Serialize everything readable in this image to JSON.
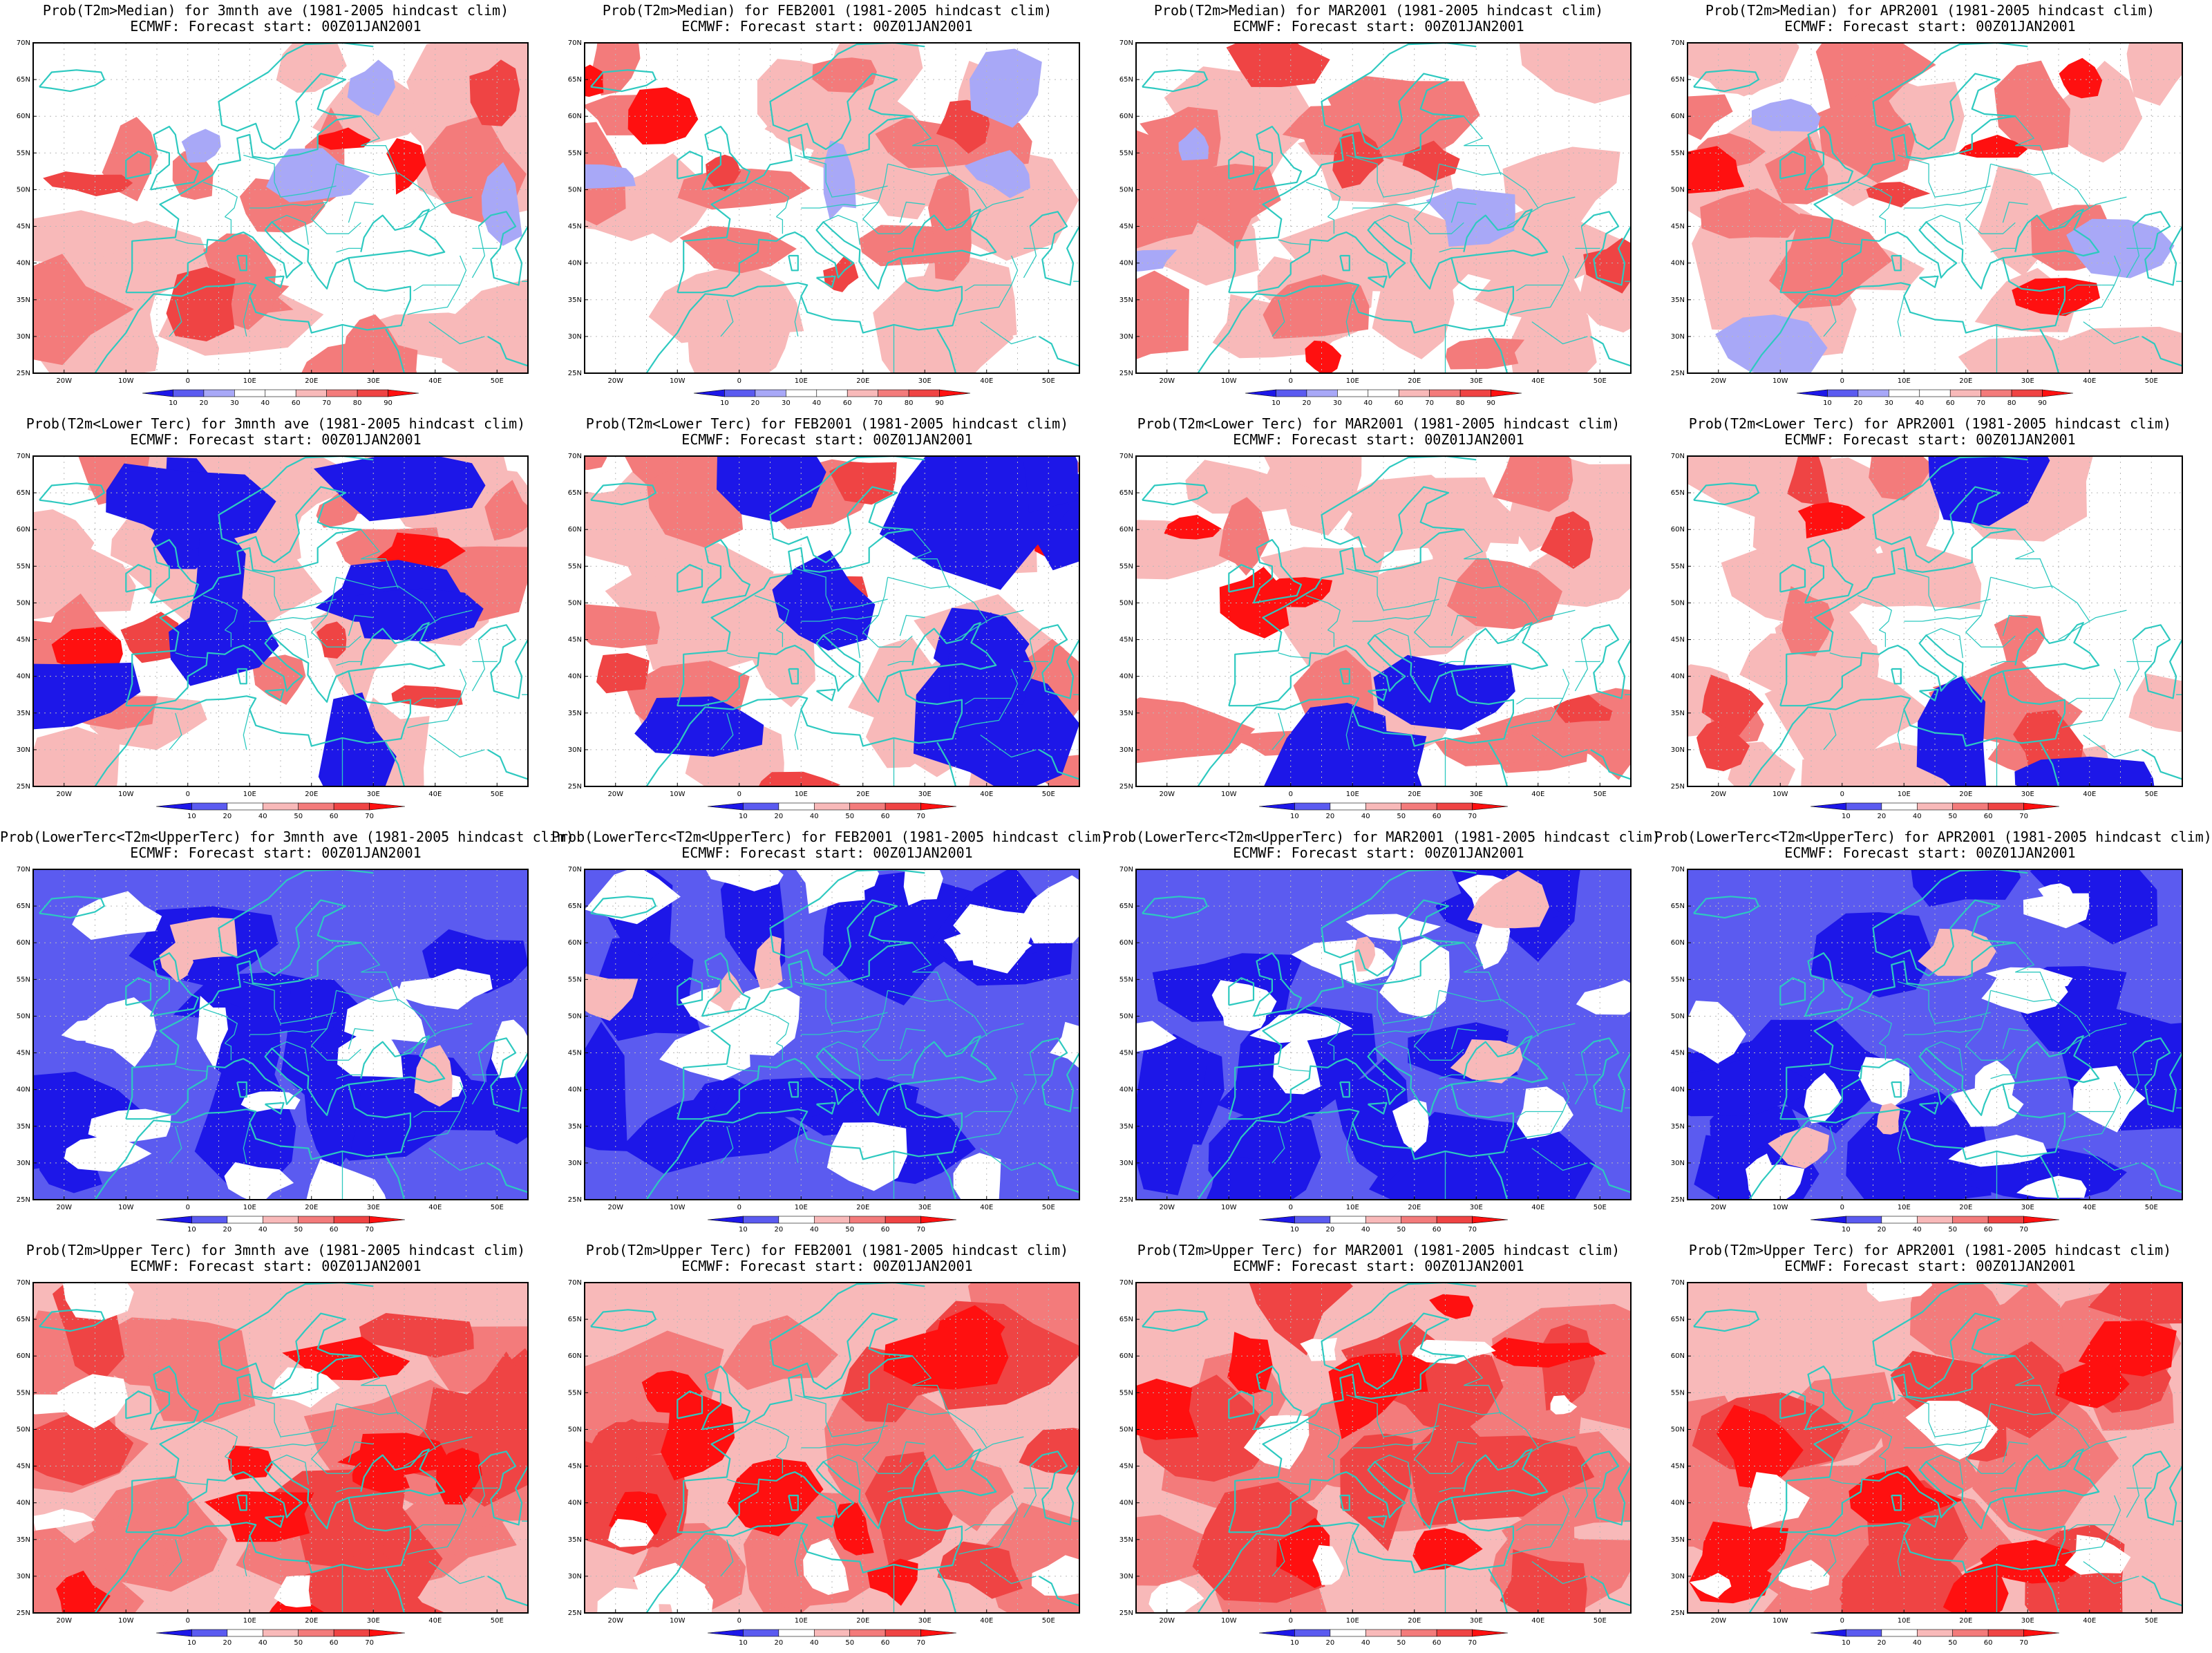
{
  "colors": {
    "blue_strong": "#1d17e8",
    "blue_mid": "#5b5bf0",
    "blue_light": "#a8a8f7",
    "red_light": "#f8b9b9",
    "red_mid": "#f37b7b",
    "red_dark": "#ef4444",
    "red_strong": "#ff1010",
    "coast": "#2ec9c0"
  },
  "axes": {
    "lat_labels": [
      "70N",
      "65N",
      "60N",
      "55N",
      "50N",
      "45N",
      "40N",
      "35N",
      "30N",
      "25N"
    ],
    "lon_labels": [
      "20W",
      "10W",
      "0",
      "10E",
      "20E",
      "30E",
      "40E",
      "50E"
    ]
  },
  "colorbars": {
    "median": [
      "10",
      "20",
      "30",
      "40",
      "60",
      "70",
      "80",
      "90"
    ],
    "tercile": [
      "10",
      "20",
      "40",
      "50",
      "60",
      "70"
    ]
  },
  "panels": [
    {
      "title": "Prob(T2m>Median) for 3mnth ave (1981-2005 hindcast clim)",
      "subtitle": "ECMWF: Forecast start: 00Z01JAN2001",
      "scheme": "median",
      "base": "white"
    },
    {
      "title": "Prob(T2m>Median) for FEB2001 (1981-2005 hindcast clim)",
      "subtitle": "ECMWF: Forecast start: 00Z01JAN2001",
      "scheme": "median",
      "base": "white"
    },
    {
      "title": "Prob(T2m>Median) for MAR2001 (1981-2005 hindcast clim)",
      "subtitle": "ECMWF: Forecast start: 00Z01JAN2001",
      "scheme": "median",
      "base": "white"
    },
    {
      "title": "Prob(T2m>Median) for APR2001 (1981-2005 hindcast clim)",
      "subtitle": "ECMWF: Forecast start: 00Z01JAN2001",
      "scheme": "median",
      "base": "white"
    },
    {
      "title": "Prob(T2m<Lower Terc) for 3mnth ave (1981-2005 hindcast clim)",
      "subtitle": "ECMWF: Forecast start: 00Z01JAN2001",
      "scheme": "tercile",
      "base": "white"
    },
    {
      "title": "Prob(T2m<Lower Terc) for FEB2001 (1981-2005 hindcast clim)",
      "subtitle": "ECMWF: Forecast start: 00Z01JAN2001",
      "scheme": "tercile",
      "base": "white"
    },
    {
      "title": "Prob(T2m<Lower Terc) for MAR2001 (1981-2005 hindcast clim)",
      "subtitle": "ECMWF: Forecast start: 00Z01JAN2001",
      "scheme": "tercile",
      "base": "white"
    },
    {
      "title": "Prob(T2m<Lower Terc) for APR2001 (1981-2005 hindcast clim)",
      "subtitle": "ECMWF: Forecast start: 00Z01JAN2001",
      "scheme": "tercile",
      "base": "white"
    },
    {
      "title": "Prob(LowerTerc<T2m<UpperTerc) for 3mnth ave (1981-2005 hindcast clim)",
      "subtitle": "ECMWF: Forecast start: 00Z01JAN2001",
      "scheme": "tercile",
      "base": "blue"
    },
    {
      "title": "Prob(LowerTerc<T2m<UpperTerc) for FEB2001 (1981-2005 hindcast clim)",
      "subtitle": "ECMWF: Forecast start: 00Z01JAN2001",
      "scheme": "tercile",
      "base": "blue"
    },
    {
      "title": "Prob(LowerTerc<T2m<UpperTerc) for MAR2001 (1981-2005 hindcast clim)",
      "subtitle": "ECMWF: Forecast start: 00Z01JAN2001",
      "scheme": "tercile",
      "base": "blue"
    },
    {
      "title": "Prob(LowerTerc<T2m<UpperTerc) for APR2001 (1981-2005 hindcast clim)",
      "subtitle": "ECMWF: Forecast start: 00Z01JAN2001",
      "scheme": "tercile",
      "base": "blue"
    },
    {
      "title": "Prob(T2m>Upper Terc) for 3mnth ave (1981-2005 hindcast clim)",
      "subtitle": "ECMWF: Forecast start: 00Z01JAN2001",
      "scheme": "tercile",
      "base": "red"
    },
    {
      "title": "Prob(T2m>Upper Terc) for FEB2001 (1981-2005 hindcast clim)",
      "subtitle": "ECMWF: Forecast start: 00Z01JAN2001",
      "scheme": "tercile",
      "base": "red"
    },
    {
      "title": "Prob(T2m>Upper Terc) for MAR2001 (1981-2005 hindcast clim)",
      "subtitle": "ECMWF: Forecast start: 00Z01JAN2001",
      "scheme": "tercile",
      "base": "red"
    },
    {
      "title": "Prob(T2m>Upper Terc) for APR2001 (1981-2005 hindcast clim)",
      "subtitle": "ECMWF: Forecast start: 00Z01JAN2001",
      "scheme": "tercile",
      "base": "red"
    }
  ]
}
